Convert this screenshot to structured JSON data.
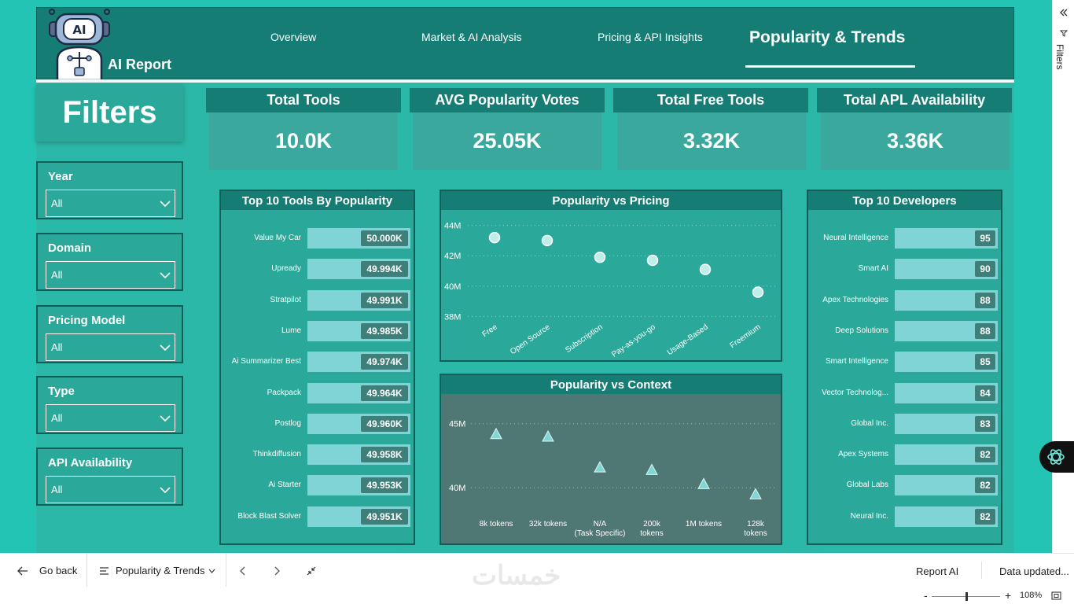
{
  "brand": "AI Report",
  "logo_text": "AI",
  "nav": {
    "tabs": [
      {
        "label": "Overview"
      },
      {
        "label": "Market & AI Analysis"
      },
      {
        "label": "Pricing & API Insights"
      },
      {
        "label": "Popularity & Trends"
      }
    ],
    "active": "Popularity & Trends"
  },
  "filters": {
    "title": "Filters",
    "items": [
      {
        "label": "Year",
        "value": "All"
      },
      {
        "label": "Domain",
        "value": "All"
      },
      {
        "label": "Pricing Model",
        "value": "All"
      },
      {
        "label": "Type",
        "value": "All"
      },
      {
        "label": "API Availability",
        "value": "All"
      }
    ]
  },
  "kpis": [
    {
      "label": "Total Tools",
      "value": "10.0K"
    },
    {
      "label": "AVG Popularity Votes",
      "value": "25.05K"
    },
    {
      "label": "Total Free Tools",
      "value": "3.32K"
    },
    {
      "label": "Total APL Availability",
      "value": "3.36K"
    }
  ],
  "top_tools": {
    "title": "Top 10 Tools By Popularity",
    "rows": [
      {
        "name": "Value My Car",
        "value": "50.000K"
      },
      {
        "name": "Upready",
        "value": "49.994K"
      },
      {
        "name": "Stratpilot",
        "value": "49.991K"
      },
      {
        "name": "Lume",
        "value": "49.985K"
      },
      {
        "name": "Ai Summarizer Best",
        "value": "49.974K"
      },
      {
        "name": "Packpack",
        "value": "49.964K"
      },
      {
        "name": "Postlog",
        "value": "49.960K"
      },
      {
        "name": "Thinkdiffusion",
        "value": "49.958K"
      },
      {
        "name": "Ai Starter",
        "value": "49.953K"
      },
      {
        "name": "Block Blast Solver",
        "value": "49.951K"
      }
    ]
  },
  "top_devs": {
    "title": "Top 10 Developers",
    "rows": [
      {
        "name": "Neural Intelligence",
        "value": "95"
      },
      {
        "name": "Smart AI",
        "value": "90"
      },
      {
        "name": "Apex Technologies",
        "value": "88"
      },
      {
        "name": "Deep Solutions",
        "value": "88"
      },
      {
        "name": "Smart Intelligence",
        "value": "85"
      },
      {
        "name": "Vector Technolog...",
        "value": "84"
      },
      {
        "name": "Global Inc.",
        "value": "83"
      },
      {
        "name": "Apex Systems",
        "value": "82"
      },
      {
        "name": "Global Labs",
        "value": "82"
      },
      {
        "name": "Neural Inc.",
        "value": "82"
      }
    ]
  },
  "chart_data": [
    {
      "type": "scatter",
      "title": "Popularity vs Pricing",
      "categories": [
        "Free",
        "Open Source",
        "Subscription",
        "Pay-as-you-go",
        "Usage-Based",
        "Freemium"
      ],
      "values": [
        43.2,
        43.0,
        41.9,
        41.7,
        41.1,
        39.6
      ],
      "ylim": [
        37.5,
        44.5
      ],
      "yticks": [
        38,
        40,
        42,
        44
      ],
      "ytick_labels": [
        "38M",
        "40M",
        "42M",
        "44M"
      ],
      "xlabel": "",
      "ylabel": ""
    },
    {
      "type": "scatter",
      "title": "Popularity vs Context",
      "categories": [
        "8k tokens",
        "32k tokens",
        "N/A (Task Specific)",
        "200k tokens",
        "1M tokens",
        "128k tokens"
      ],
      "values": [
        44.2,
        44.0,
        41.6,
        41.4,
        40.3,
        39.5
      ],
      "ylim": [
        37.5,
        46.7
      ],
      "yticks": [
        40,
        45
      ],
      "ytick_labels": [
        "40M",
        "45M"
      ],
      "xlabel": "",
      "ylabel": ""
    }
  ],
  "colors": {
    "accent": "#167d74",
    "canvas": "#24c4b4",
    "bar": "#80d4d6",
    "marker": "#bfeeea"
  },
  "sidebar": {
    "title": "Filters"
  },
  "bottom": {
    "back": "Go back",
    "page": "Popularity & Trends",
    "report": "Report AI",
    "updated": "Data updated...",
    "zoom": "108%",
    "watermark": "خمسات"
  }
}
